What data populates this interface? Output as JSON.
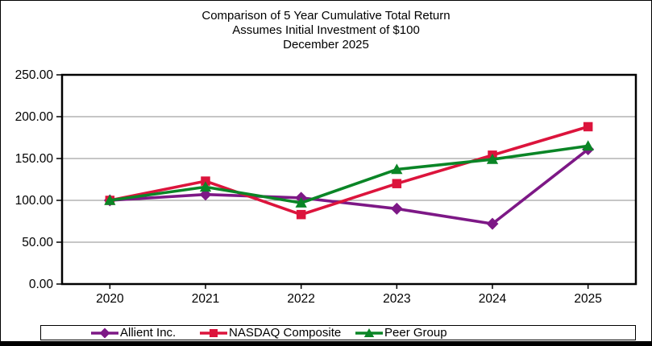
{
  "title": {
    "line1": "Comparison of 5 Year Cumulative  Total Return",
    "line2": "Assumes  Initial Investment  of $100",
    "line3": "December 2025"
  },
  "chart_data": {
    "type": "line",
    "categories": [
      "2020",
      "2021",
      "2022",
      "2023",
      "2024",
      "2025"
    ],
    "series": [
      {
        "name": "Allient Inc.",
        "color": "#7d1886",
        "marker": "diamond",
        "values": [
          100,
          107,
          103,
          90,
          72,
          161
        ]
      },
      {
        "name": "NASDAQ Composite",
        "color": "#dc143c",
        "marker": "square",
        "values": [
          100,
          123,
          83,
          120,
          154,
          188
        ]
      },
      {
        "name": "Peer Group",
        "color": "#0a8526",
        "marker": "triangle",
        "values": [
          100,
          116,
          97,
          137,
          149,
          165
        ]
      }
    ],
    "xlabel": "",
    "ylabel": "",
    "ylim": [
      0,
      250
    ],
    "yticks": [
      0,
      50,
      100,
      150,
      200,
      250
    ],
    "ytick_labels": [
      "0.00",
      "50.00",
      "100.00",
      "150.00",
      "200.00",
      "250.00"
    ],
    "grid": true,
    "legend_position": "bottom",
    "colors": {
      "gridline": "#8c8c8c",
      "axis": "#000000",
      "text": "#000000"
    }
  }
}
